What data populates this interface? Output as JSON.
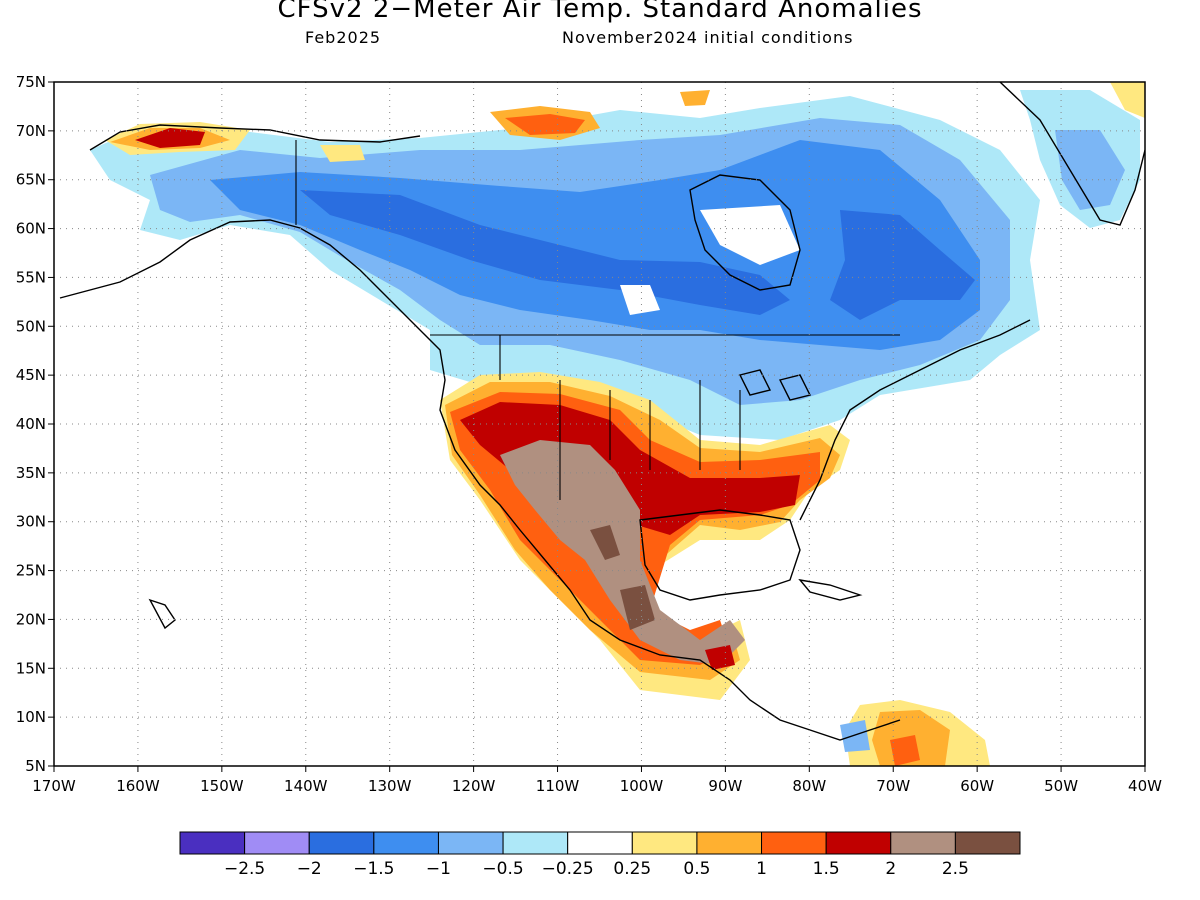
{
  "header": {
    "title": "CFSv2 2−Meter Air Temp. Standard Anomalies",
    "valid_month": "Feb2025",
    "init": "November2024 initial conditions"
  },
  "axes": {
    "lat_labels": [
      "75N",
      "70N",
      "65N",
      "60N",
      "55N",
      "50N",
      "45N",
      "40N",
      "35N",
      "30N",
      "25N",
      "20N",
      "15N",
      "10N",
      "5N"
    ],
    "lon_labels": [
      "170W",
      "160W",
      "150W",
      "140W",
      "130W",
      "120W",
      "110W",
      "100W",
      "90W",
      "80W",
      "70W",
      "60W",
      "50W",
      "40W"
    ]
  },
  "colorbar": {
    "labels": [
      "−2.5",
      "−2",
      "−1.5",
      "−1",
      "−0.5",
      "−0.25",
      "0.25",
      "0.5",
      "1",
      "1.5",
      "2",
      "2.5"
    ],
    "colors": [
      "#4a2fc0",
      "#a08cf5",
      "#2a6ee0",
      "#3e8ef0",
      "#7bb6f5",
      "#aee8f8",
      "#ffffff",
      "#ffe880",
      "#ffb030",
      "#ff6010",
      "#c00000",
      "#b09080",
      "#7a5040"
    ]
  },
  "map_colors": {
    "cold_strong": "#2a6ee0",
    "cold": "#3e8ef0",
    "cool": "#7bb6f5",
    "cool_light": "#aee8f8",
    "warm_light": "#ffe880",
    "warm": "#ffb030",
    "warm_orange": "#ff6010",
    "hot": "#c00000",
    "hot_brown": "#b09080",
    "hot_dark": "#7a5040"
  }
}
